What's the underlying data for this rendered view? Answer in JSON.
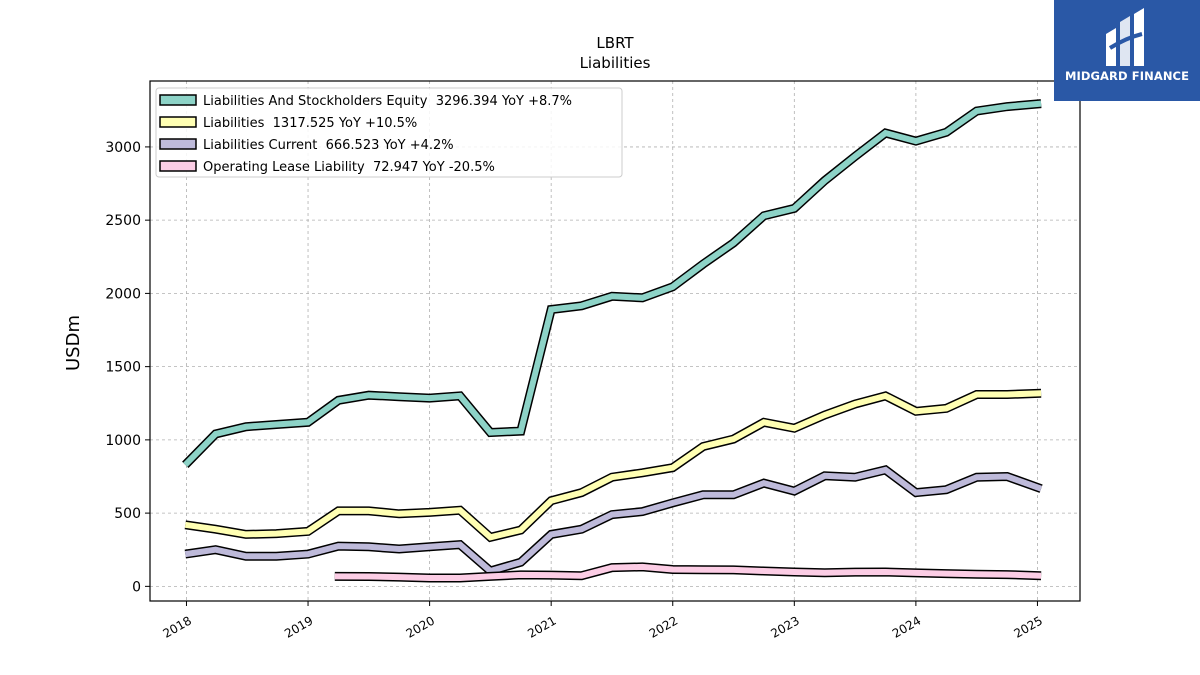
{
  "brand": {
    "name": "MIDGARD FINANCE",
    "color": "#2a58a6"
  },
  "chart_data": {
    "type": "line",
    "title": "LBRT",
    "subtitle": "Liabilities",
    "xlabel": "",
    "ylabel": "USDm",
    "xlim": [
      2017.7,
      2025.35
    ],
    "ylim": [
      -100,
      3450
    ],
    "x_ticks": [
      "2018",
      "2019",
      "2020",
      "2021",
      "2022",
      "2023",
      "2024",
      "2025"
    ],
    "y_ticks": [
      0,
      500,
      1000,
      1500,
      2000,
      2500,
      3000
    ],
    "grid": true,
    "legend_position": "top-left",
    "series": [
      {
        "name": "Liabilities And Stockholders Equity  3296.394 YoY +8.7%",
        "color": "#8dd3c7",
        "x": [
          2017.99,
          2018.24,
          2018.49,
          2018.74,
          2019.0,
          2019.25,
          2019.5,
          2019.75,
          2020.0,
          2020.25,
          2020.5,
          2020.75,
          2021.0,
          2021.25,
          2021.5,
          2021.75,
          2022.0,
          2022.25,
          2022.5,
          2022.75,
          2023.0,
          2023.25,
          2023.5,
          2023.75,
          2024.0,
          2024.25,
          2024.5,
          2024.75,
          2025.03
        ],
        "y": [
          830,
          1040,
          1090,
          1105,
          1120,
          1270,
          1305,
          1295,
          1285,
          1300,
          1050,
          1060,
          1890,
          1915,
          1980,
          1970,
          2045,
          2200,
          2345,
          2530,
          2580,
          2770,
          2935,
          3095,
          3040,
          3100,
          3245,
          3275,
          3296
        ]
      },
      {
        "name": "Liabilities  1317.525 YoY +10.5%",
        "color": "#ffffb3",
        "x": [
          2017.99,
          2018.24,
          2018.49,
          2018.74,
          2019.0,
          2019.25,
          2019.5,
          2019.75,
          2020.0,
          2020.25,
          2020.5,
          2020.75,
          2021.0,
          2021.25,
          2021.5,
          2021.75,
          2022.0,
          2022.25,
          2022.5,
          2022.75,
          2023.0,
          2023.25,
          2023.5,
          2023.75,
          2024.0,
          2024.25,
          2024.5,
          2024.75,
          2025.03
        ],
        "y": [
          420,
          390,
          355,
          360,
          375,
          515,
          515,
          495,
          505,
          520,
          335,
          385,
          585,
          640,
          745,
          775,
          810,
          955,
          1005,
          1120,
          1080,
          1170,
          1245,
          1300,
          1195,
          1215,
          1310,
          1310,
          1318
        ]
      },
      {
        "name": "Liabilities Current  666.523 YoY +4.2%",
        "color": "#bebada",
        "x": [
          2017.99,
          2018.24,
          2018.49,
          2018.74,
          2019.0,
          2019.25,
          2019.5,
          2019.75,
          2020.0,
          2020.25,
          2020.5,
          2020.75,
          2021.0,
          2021.25,
          2021.5,
          2021.75,
          2022.0,
          2022.25,
          2022.5,
          2022.75,
          2023.0,
          2023.25,
          2023.5,
          2023.75,
          2024.0,
          2024.25,
          2024.5,
          2024.75,
          2025.03
        ],
        "y": [
          220,
          250,
          205,
          205,
          220,
          275,
          270,
          255,
          270,
          285,
          105,
          165,
          355,
          390,
          490,
          510,
          570,
          625,
          625,
          705,
          650,
          755,
          745,
          795,
          640,
          660,
          745,
          750,
          667
        ]
      },
      {
        "name": "Operating Lease Liability  72.947 YoY -20.5%",
        "color": "#fccde5",
        "x": [
          2019.22,
          2019.5,
          2019.75,
          2020.0,
          2020.25,
          2020.5,
          2020.75,
          2021.0,
          2021.25,
          2021.5,
          2021.75,
          2022.0,
          2022.25,
          2022.5,
          2022.75,
          2023.0,
          2023.25,
          2023.5,
          2023.75,
          2024.0,
          2024.25,
          2024.5,
          2024.75,
          2025.03
        ],
        "y": [
          68,
          67,
          63,
          57,
          57,
          68,
          78,
          77,
          73,
          128,
          133,
          115,
          113,
          112,
          105,
          98,
          93,
          97,
          98,
          92,
          87,
          83,
          80,
          73
        ]
      }
    ]
  }
}
